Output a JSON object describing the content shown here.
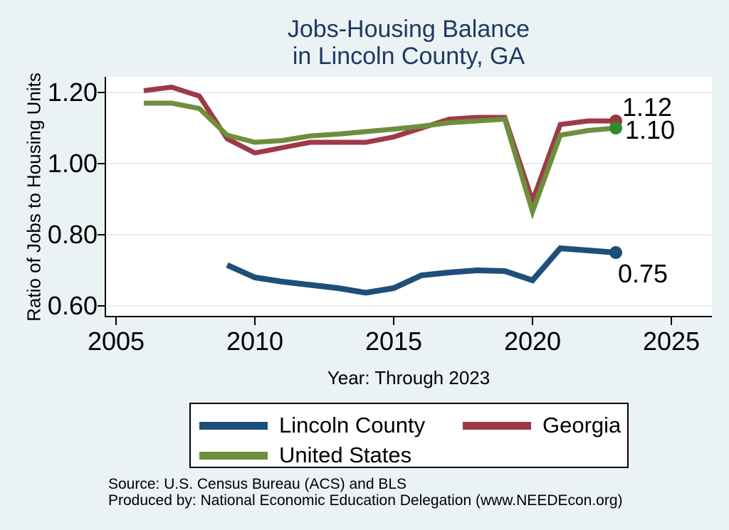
{
  "title": {
    "line1": "Jobs-Housing Balance",
    "line2": "in Lincoln County, GA"
  },
  "chart_data": {
    "type": "line",
    "title": "Jobs-Housing Balance in Lincoln County, GA",
    "xlabel": "Year: Through 2023",
    "ylabel": "Ratio of Jobs to Housing Units",
    "xlim": [
      2004.6,
      2026.4
    ],
    "ylim": [
      0.57,
      1.245
    ],
    "x_ticks": [
      2005,
      2010,
      2015,
      2020,
      2025
    ],
    "y_ticks": [
      0.6,
      0.8,
      1.0,
      1.2
    ],
    "y_tick_labels": [
      "0.60",
      "0.80",
      "1.00",
      "1.20"
    ],
    "grid": "horizontal",
    "legend_position": "bottom",
    "series": [
      {
        "name": "Lincoln County",
        "color": "#1f4e79",
        "marker_color": "#1f4e79",
        "line_width": 8,
        "x": [
          2009,
          2010,
          2011,
          2012,
          2013,
          2014,
          2015,
          2016,
          2017,
          2018,
          2019,
          2020,
          2021,
          2022,
          2023
        ],
        "values": [
          0.715,
          0.68,
          0.668,
          0.659,
          0.65,
          0.637,
          0.65,
          0.686,
          0.694,
          0.7,
          0.698,
          0.672,
          0.762,
          0.756,
          0.75
        ],
        "end_label": "0.75"
      },
      {
        "name": "Georgia",
        "color": "#9e3a47",
        "marker_color": "#953a43",
        "line_width": 7,
        "x": [
          2006,
          2007,
          2008,
          2009,
          2010,
          2011,
          2012,
          2013,
          2014,
          2015,
          2016,
          2017,
          2018,
          2019,
          2020,
          2021,
          2022,
          2023
        ],
        "values": [
          1.205,
          1.215,
          1.19,
          1.07,
          1.03,
          1.045,
          1.06,
          1.06,
          1.06,
          1.075,
          1.1,
          1.125,
          1.13,
          1.13,
          0.895,
          1.11,
          1.12,
          1.12
        ],
        "end_label": "1.12"
      },
      {
        "name": "United States",
        "color": "#6e8e3c",
        "marker_color": "#2e8b2e",
        "line_width": 7,
        "x": [
          2006,
          2007,
          2008,
          2009,
          2010,
          2011,
          2012,
          2013,
          2014,
          2015,
          2016,
          2017,
          2018,
          2019,
          2020,
          2021,
          2022,
          2023
        ],
        "values": [
          1.17,
          1.17,
          1.155,
          1.08,
          1.06,
          1.065,
          1.078,
          1.083,
          1.09,
          1.097,
          1.105,
          1.115,
          1.12,
          1.125,
          0.865,
          1.08,
          1.093,
          1.1
        ],
        "end_label": "1.10"
      }
    ]
  },
  "legend": {
    "items": [
      {
        "label": "Lincoln County",
        "color": "#1f4e79"
      },
      {
        "label": "Georgia",
        "color": "#9e3a47"
      },
      {
        "label": "United States",
        "color": "#6e8e3c"
      }
    ]
  },
  "footer": {
    "source": "Source: U.S. Census Bureau (ACS) and BLS",
    "produced_by": "Produced by: National Economic Education Delegation (www.NEEDEcon.org)"
  },
  "colors": {
    "background": "#eaf2f3",
    "plot_background": "#ffffff",
    "grid": "#e2ecf2",
    "axis": "#000000",
    "title": "#1f3864"
  }
}
